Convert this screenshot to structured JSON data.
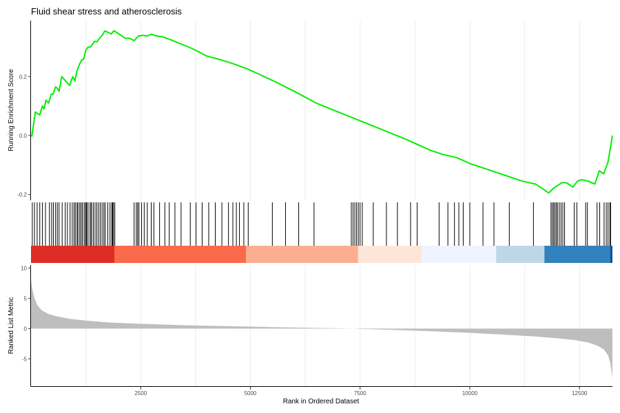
{
  "chart_data": {
    "type": "line",
    "title": "Fluid shear stress and atherosclerosis",
    "xlabel": "Rank in Ordered Dataset",
    "ylabel_top": "Running Enrichment Score",
    "ylabel_bottom": "Ranked List Metric",
    "xlim": [
      0,
      13250
    ],
    "x_ticks": [
      2500,
      5000,
      7500,
      10000,
      12500
    ],
    "x_tick_labels": [
      "2500",
      "5000",
      "7500",
      "10000",
      "12500"
    ],
    "es_ylim": [
      -0.22,
      0.39
    ],
    "es_ticks": [
      -0.2,
      0.0,
      0.2
    ],
    "es_tick_labels": [
      "-0.2",
      "0.0",
      "0.2"
    ],
    "metric_ylim": [
      -9.5,
      10.5
    ],
    "metric_ticks": [
      -5,
      0,
      5,
      10
    ],
    "metric_tick_labels": [
      "-5",
      "0",
      "5",
      "10"
    ],
    "line_color": "#00ee00",
    "series": [
      {
        "values_description": "running enrichment score",
        "x": [
          0,
          20,
          60,
          100,
          140,
          200,
          260,
          300,
          340,
          400,
          460,
          500,
          560,
          600,
          640,
          700,
          760,
          820,
          880,
          950,
          1000,
          1050,
          1100,
          1150,
          1200,
          1250,
          1300,
          1350,
          1400,
          1450,
          1500,
          1560,
          1620,
          1680,
          1760,
          1830,
          1890,
          1950,
          2050,
          2150,
          2250,
          2350,
          2450,
          2550,
          2650,
          2750,
          2850,
          3000,
          3200,
          3400,
          3600,
          3800,
          4000,
          4300,
          4600,
          4900,
          5200,
          5600,
          6000,
          6500,
          7000,
          7500,
          8000,
          8500,
          8800,
          9100,
          9400,
          9700,
          10000,
          10300,
          10600,
          10900,
          11200,
          11500,
          11800,
          11900,
          12000,
          12100,
          12200,
          12350,
          12450,
          12550,
          12700,
          12850,
          12950,
          13050,
          13150,
          13250
        ],
        "y": [
          0.0,
          -0.002,
          0.04,
          0.08,
          0.075,
          0.07,
          0.1,
          0.09,
          0.12,
          0.11,
          0.14,
          0.14,
          0.165,
          0.16,
          0.15,
          0.2,
          0.19,
          0.18,
          0.17,
          0.2,
          0.185,
          0.22,
          0.24,
          0.255,
          0.26,
          0.29,
          0.3,
          0.3,
          0.31,
          0.32,
          0.318,
          0.33,
          0.34,
          0.355,
          0.35,
          0.345,
          0.356,
          0.35,
          0.34,
          0.33,
          0.33,
          0.322,
          0.338,
          0.34,
          0.338,
          0.344,
          0.338,
          0.335,
          0.324,
          0.312,
          0.3,
          0.286,
          0.27,
          0.258,
          0.244,
          0.228,
          0.208,
          0.18,
          0.15,
          0.11,
          0.08,
          0.05,
          0.02,
          -0.01,
          -0.03,
          -0.05,
          -0.065,
          -0.075,
          -0.095,
          -0.11,
          -0.125,
          -0.14,
          -0.155,
          -0.165,
          -0.195,
          -0.18,
          -0.17,
          -0.16,
          -0.16,
          -0.175,
          -0.155,
          -0.15,
          -0.155,
          -0.165,
          -0.12,
          -0.13,
          -0.09,
          0.0
        ]
      }
    ],
    "hit_ranks": [
      30,
      80,
      140,
      200,
      260,
      330,
      420,
      470,
      510,
      560,
      600,
      640,
      710,
      780,
      830,
      890,
      940,
      980,
      1010,
      1050,
      1070,
      1110,
      1140,
      1170,
      1210,
      1240,
      1260,
      1280,
      1320,
      1360,
      1380,
      1420,
      1460,
      1500,
      1540,
      1580,
      1620,
      1660,
      1690,
      1750,
      1800,
      1840,
      1860,
      1880,
      1910,
      2350,
      2400,
      2430,
      2460,
      2520,
      2580,
      2650,
      2740,
      2800,
      2930,
      3050,
      3150,
      3280,
      3420,
      3630,
      3760,
      3900,
      4050,
      4200,
      4350,
      4500,
      4600,
      4680,
      4750,
      4850,
      4950,
      5500,
      5800,
      6100,
      6450,
      7300,
      7340,
      7380,
      7420,
      7460,
      7500,
      7550,
      7800,
      8100,
      8350,
      8650,
      8800,
      9300,
      9500,
      9650,
      9750,
      9850,
      10000,
      10300,
      10550,
      10900,
      11450,
      11850,
      11880,
      11910,
      11940,
      11970,
      12000,
      12040,
      12080,
      12120,
      12160,
      12380,
      12440,
      12640,
      12680,
      12900,
      12960,
      13060,
      13110,
      13150,
      13190,
      13210
    ],
    "heatmap_bands": [
      {
        "from": 0,
        "to": 1900,
        "color": "#de2d26"
      },
      {
        "from": 1900,
        "to": 4900,
        "color": "#fb6a4a"
      },
      {
        "from": 4900,
        "to": 7450,
        "color": "#fcae91"
      },
      {
        "from": 7450,
        "to": 8900,
        "color": "#fee5d9"
      },
      {
        "from": 8900,
        "to": 10600,
        "color": "#eff3ff"
      },
      {
        "from": 10600,
        "to": 11700,
        "color": "#bdd7e7"
      },
      {
        "from": 11700,
        "to": 13200,
        "color": "#3182bd"
      },
      {
        "from": 13200,
        "to": 13250,
        "color": "#08519c"
      }
    ],
    "ranked_metric": {
      "color": "#bebebe",
      "ranks": [
        0,
        30,
        80,
        150,
        250,
        400,
        600,
        900,
        1300,
        1800,
        2500,
        3500,
        4500,
        5500,
        6500,
        7300,
        7500,
        8200,
        9000,
        10000,
        10800,
        11500,
        12000,
        12400,
        12700,
        12900,
        13050,
        13150,
        13200,
        13250
      ],
      "values": [
        8.0,
        6.5,
        5.0,
        3.8,
        3.0,
        2.4,
        2.0,
        1.6,
        1.3,
        1.0,
        0.8,
        0.55,
        0.4,
        0.25,
        0.12,
        0.02,
        -0.05,
        -0.2,
        -0.4,
        -0.7,
        -1.0,
        -1.3,
        -1.6,
        -1.9,
        -2.3,
        -2.8,
        -3.4,
        -4.4,
        -5.6,
        -8.2
      ]
    }
  }
}
